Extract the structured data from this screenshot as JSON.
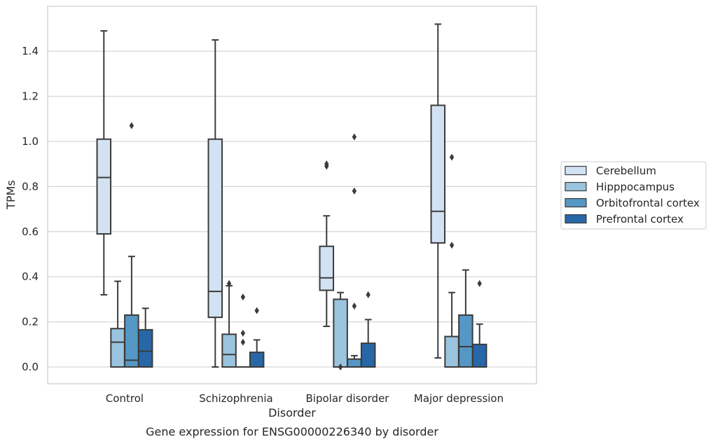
{
  "chart_data": {
    "type": "boxplot",
    "title": "Gene expression for ENSG00000226340 by disorder",
    "xlabel": "Disorder",
    "ylabel": "TPMs",
    "ylim": [
      -0.07,
      1.57
    ],
    "yticks": [
      0.0,
      0.2,
      0.4,
      0.6,
      0.8,
      1.0,
      1.2,
      1.4
    ],
    "ytick_labels": [
      "0.0",
      "0.2",
      "0.4",
      "0.6",
      "0.8",
      "1.0",
      "1.2",
      "1.4"
    ],
    "categories": [
      "Control",
      "Schizophrenia",
      "Bipolar disorder",
      "Major depression"
    ],
    "grid": "horizontal",
    "legend_position": "right",
    "series": [
      {
        "name": "Cerebellum",
        "color": "#d3e2f2",
        "boxes": [
          {
            "whislo": 0.32,
            "q1": 0.59,
            "med": 0.84,
            "q3": 1.01,
            "whishi": 1.49,
            "fliers": []
          },
          {
            "whislo": 0.0,
            "q1": 0.22,
            "med": 0.335,
            "q3": 1.01,
            "whishi": 1.45,
            "fliers": []
          },
          {
            "whislo": 0.18,
            "q1": 0.34,
            "med": 0.395,
            "q3": 0.535,
            "whishi": 0.67,
            "fliers": [
              0.89,
              0.9
            ]
          },
          {
            "whislo": 0.04,
            "q1": 0.55,
            "med": 0.69,
            "q3": 1.16,
            "whishi": 1.52,
            "fliers": []
          }
        ]
      },
      {
        "name": "Hipppocampus",
        "color": "#9ac4dd",
        "boxes": [
          {
            "whislo": 0.0,
            "q1": 0.0,
            "med": 0.11,
            "q3": 0.17,
            "whishi": 0.38,
            "fliers": []
          },
          {
            "whislo": 0.0,
            "q1": 0.0,
            "med": 0.055,
            "q3": 0.145,
            "whishi": 0.36,
            "fliers": [
              0.37
            ]
          },
          {
            "whislo": 0.0,
            "q1": 0.0,
            "med": 0.0,
            "q3": 0.3,
            "whishi": 0.33,
            "fliers": [
              0.0
            ]
          },
          {
            "whislo": 0.0,
            "q1": 0.0,
            "med": 0.0,
            "q3": 0.135,
            "whishi": 0.33,
            "fliers": [
              0.93,
              0.54
            ]
          }
        ]
      },
      {
        "name": "Orbitofrontal cortex",
        "color": "#5597c5",
        "boxes": [
          {
            "whislo": 0.0,
            "q1": 0.0,
            "med": 0.03,
            "q3": 0.23,
            "whishi": 0.49,
            "fliers": [
              1.07
            ]
          },
          {
            "whislo": 0.0,
            "q1": 0.0,
            "med": 0.0,
            "q3": 0.0,
            "whishi": 0.0,
            "fliers": [
              0.11,
              0.15,
              0.31
            ]
          },
          {
            "whislo": 0.0,
            "q1": 0.0,
            "med": 0.0,
            "q3": 0.035,
            "whishi": 0.05,
            "fliers": [
              0.27,
              0.78,
              1.02
            ]
          },
          {
            "whislo": 0.0,
            "q1": 0.0,
            "med": 0.09,
            "q3": 0.23,
            "whishi": 0.43,
            "fliers": []
          }
        ]
      },
      {
        "name": "Prefrontal cortex",
        "color": "#2767a8",
        "boxes": [
          {
            "whislo": 0.0,
            "q1": 0.0,
            "med": 0.07,
            "q3": 0.165,
            "whishi": 0.26,
            "fliers": []
          },
          {
            "whislo": 0.0,
            "q1": 0.0,
            "med": 0.0,
            "q3": 0.065,
            "whishi": 0.12,
            "fliers": [
              0.25
            ]
          },
          {
            "whislo": 0.0,
            "q1": 0.0,
            "med": 0.0,
            "q3": 0.105,
            "whishi": 0.21,
            "fliers": [
              0.32
            ]
          },
          {
            "whislo": 0.0,
            "q1": 0.0,
            "med": 0.0,
            "q3": 0.1,
            "whishi": 0.19,
            "fliers": [
              0.37
            ]
          }
        ]
      }
    ]
  }
}
